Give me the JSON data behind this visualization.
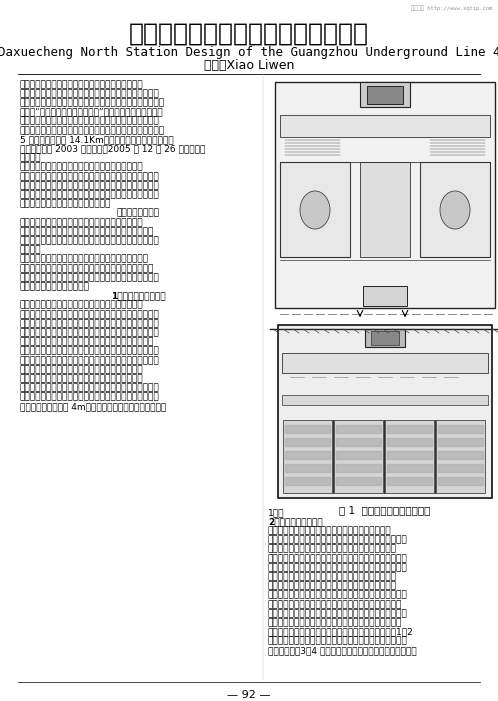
{
  "title_chinese": "广州地铁四号线大学城北站建筑设计",
  "title_english": "Daxuecheng North Station Design of the Guangzhou Underground Line 4",
  "author": "肖荔文Xiao Liwen",
  "watermark": "免费文档 http://www.sqtip.com",
  "page_number": "— 92 —",
  "background_color": "#ffffff",
  "text_color": "#000000",
  "left_lines": [
    [
      "广州市轨道交通四号线北起科学城，南至番禺南沙，",
      false
    ],
    [
      "是广州城市东翄的一条南北交通干线，串联着科学城、生物",
      false
    ],
    [
      "岛、大学城、广州新城、南沙经济技术开发区，对实现广州城",
      false
    ],
    [
      "市建设“南拓、北优、东进、西联”的发展战略，起到巨大促",
      false
    ],
    [
      "进作用。为配合广州大学城的建设，四号线先行建设大学城",
      false
    ],
    [
      "专线段，沿线设置万胜围、官洲、大学城北、大学城南、新造",
      false
    ],
    [
      "5 座车站，总长约 14.1Km，并在万胜围实现与二号线换",
      false
    ],
    [
      "乘。该线路于 2003 年初动工，2005 年 12 月 26 日建成投入",
      false
    ],
    [
      "试运营。",
      false
    ],
    [
      "大学城北站位于广州小谷围岛，广州大学城发展轴线",
      false
    ],
    [
      "北端，邻近中山大学、星海音乐学院、华南师范大学及综合",
      false
    ],
    [
      "商业北区。鉴于其为大学城服务的特点，其整体空间应具超",
      false
    ],
    [
      "前意识，便之成为值得被探访的公共站点；并应发挥轨道交",
      false
    ],
    [
      "通系统的特点，有效地疏导周边客流。",
      false
    ],
    [
      "一、建筑总体布局",
      true
    ],
    [
      "地铁车站作为城市公共交通系统的组成部分，首先需",
      false
    ],
    [
      "要考虑乘客使用的便捷性。其次还要在总的线路安排下在",
      false
    ],
    [
      "站位上结合周边地形、地下管线与建、构筑物进行总体布局",
      false
    ],
    [
      "和协调。",
      false
    ],
    [
      "进行大学城建设时，小谷围岛进行了新的规划，路网重",
      false
    ],
    [
      "新布局。而地铁的设计和施工基本是同大学城建设同步进",
      false
    ],
    [
      "行的，所以车站施工基本不要拆迁或道路迁改的影响，可以",
      false
    ],
    [
      "方便地采用明挖法进行施工。",
      false
    ],
    [
      "1、与市政管线的协调",
      true
    ],
    [
      "一般而言，站址周边地下管线的布置情况或多或少会",
      false
    ],
    [
      "对车站站位、布置以及埋深产生影响。大学城内主要道路都",
      false
    ],
    [
      "设计了钉筋混凝土共同管沟，所有管线都布置在管沟内部，",
      false
    ],
    [
      "底方便了各类管线的施工、检修，也避免了为了管线施工而",
      false
    ],
    [
      "对道路进行反复开掘。这使得车站设计不需要考虑管线迁",
      false
    ],
    [
      "改，施工便利；但由于地铁车站与管沟同样布置在道路下，",
      false
    ],
    [
      "使得在剖面设计上，必然产生车站与管沟重叠布置，所以车",
      false
    ],
    [
      "站埋深及顶板设计要充分考虑共同沟的空间与影响。",
      false
    ],
    [
      "在设计过程中，经过与管沟、道路等相关设计部门协",
      false
    ],
    [
      "调，根据现场的实际情况确立了管沟设置在车站顶板上方，",
      false
    ],
    [
      "结构各自独立的实施方案。由于管沟本身有一定的高度，使",
      false
    ],
    [
      "得整个车站的埋深约 4m，比通常的浅埋明挖车站略大（图",
      false
    ]
  ],
  "right_lines": [
    [
      "1）。",
      false
    ],
    [
      "2、与周边建筑的协调",
      true
    ],
    [
      "地铁车站的出入口、风亭等地面部分虽然所占的分量",
      false
    ],
    [
      "不大，但其对客流的吸引以及城市景观有着重要的影响。出",
      false
    ],
    [
      "入口建筑及风亭在建筑风格上应与地面周边环境保持一",
      false
    ],
    [
      "致，并满足相关规划要求。出入口位置应最大限度地吸引客",
      false
    ],
    [
      "流，并留有足够的缓冲空间；风亭应尽量减低对人们生产、",
      false
    ],
    [
      "生活、学习的影响，且满足工程环境影响评价的要求。",
      false
    ],
    [
      "广州大学城的路网规划由内、中、外三条环路和多条放",
      false
    ],
    [
      "射路构成，大学城北站位于大学城中辐轴北部，中环路与中",
      false
    ],
    [
      "心大街交叉路口南侧的中心大街道路下。由于本站周边除",
      false
    ],
    [
      "中环路北侧为规划商业区，其余地块尚未深化设计，设计时",
      false
    ],
    [
      "仅能根据规划道路尽可能均匀地布置出入口。大学城北站",
      false
    ],
    [
      "共设四个出入口，根据客流吸引和过街要求均匀布置：1、2",
      false
    ],
    [
      "号出入口设置于车站北端，分别位于中环路两侧，紧靠中环",
      false
    ],
    [
      "路过街行人；3、4 号出入口分别设置于车站东西两侧，通过",
      false
    ]
  ],
  "figure_caption": "图 1  市政管沟与地铁站的关系",
  "font_sizes": {
    "title_chinese": 18,
    "title_english": 9,
    "author": 9,
    "body": 6.5,
    "caption": 7.5,
    "page_number": 8,
    "watermark": 4
  }
}
